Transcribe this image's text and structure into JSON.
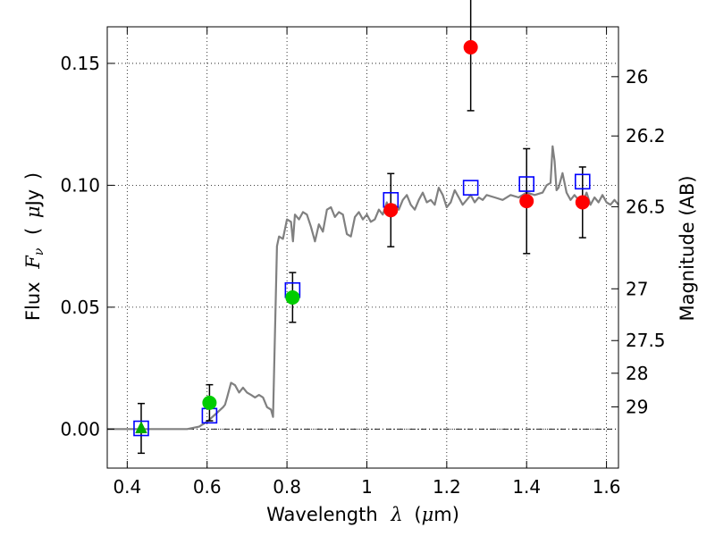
{
  "chart_data": {
    "type": "scatter",
    "xlabel": {
      "prefix": "Wavelength",
      "symbol": "λ",
      "unit_open": "(",
      "unit_mu": "μ",
      "unit_rest": "m)"
    },
    "ylabel": {
      "prefix": "Flux",
      "symbol": "F",
      "subscript": "ν",
      "unit_open": "(",
      "unit_mu": "μ",
      "unit_rest": "Jy",
      "unit_close": ")"
    },
    "y2label": "Magnitude (AB)",
    "xlim": [
      0.35,
      1.63
    ],
    "ylim": [
      -0.016,
      0.165
    ],
    "grid": true,
    "xticks": [
      {
        "v": 0.4,
        "label": "0.4"
      },
      {
        "v": 0.6,
        "label": "0.6"
      },
      {
        "v": 0.8,
        "label": "0.8"
      },
      {
        "v": 1.0,
        "label": "1"
      },
      {
        "v": 1.2,
        "label": "1.2"
      },
      {
        "v": 1.4,
        "label": "1.4"
      },
      {
        "v": 1.6,
        "label": "1.6"
      }
    ],
    "yticks": [
      {
        "v": 0.0,
        "label": "0.00"
      },
      {
        "v": 0.05,
        "label": "0.05"
      },
      {
        "v": 0.1,
        "label": "0.10"
      },
      {
        "v": 0.15,
        "label": "0.15"
      }
    ],
    "y2ticks": [
      {
        "mag": 26,
        "label": "26"
      },
      {
        "mag": 26.2,
        "label": "26.2"
      },
      {
        "mag": 26.5,
        "label": "26.5"
      },
      {
        "mag": 27,
        "label": "27"
      },
      {
        "mag": 27.5,
        "label": "27.5"
      },
      {
        "mag": 28,
        "label": "28"
      },
      {
        "mag": 29,
        "label": "29"
      }
    ],
    "template_spectrum": {
      "color": "#808080",
      "x": [
        0.35,
        0.55,
        0.58,
        0.6,
        0.62,
        0.64,
        0.645,
        0.65,
        0.66,
        0.67,
        0.68,
        0.69,
        0.7,
        0.71,
        0.72,
        0.73,
        0.74,
        0.75,
        0.76,
        0.765,
        0.77,
        0.775,
        0.78,
        0.79,
        0.8,
        0.81,
        0.815,
        0.82,
        0.83,
        0.84,
        0.85,
        0.86,
        0.87,
        0.88,
        0.89,
        0.9,
        0.91,
        0.92,
        0.93,
        0.94,
        0.95,
        0.96,
        0.97,
        0.98,
        0.99,
        1.0,
        1.01,
        1.02,
        1.03,
        1.04,
        1.05,
        1.06,
        1.07,
        1.08,
        1.09,
        1.1,
        1.11,
        1.12,
        1.13,
        1.14,
        1.15,
        1.16,
        1.17,
        1.18,
        1.19,
        1.2,
        1.21,
        1.22,
        1.23,
        1.24,
        1.25,
        1.26,
        1.27,
        1.28,
        1.29,
        1.3,
        1.32,
        1.34,
        1.36,
        1.38,
        1.4,
        1.42,
        1.44,
        1.45,
        1.46,
        1.465,
        1.47,
        1.475,
        1.48,
        1.49,
        1.5,
        1.51,
        1.52,
        1.53,
        1.54,
        1.55,
        1.56,
        1.57,
        1.58,
        1.59,
        1.6,
        1.61,
        1.62,
        1.63
      ],
      "y": [
        0.0,
        0.0,
        0.001,
        0.003,
        0.006,
        0.009,
        0.01,
        0.013,
        0.019,
        0.018,
        0.015,
        0.017,
        0.015,
        0.014,
        0.013,
        0.014,
        0.013,
        0.009,
        0.008,
        0.005,
        0.04,
        0.075,
        0.079,
        0.078,
        0.086,
        0.085,
        0.077,
        0.088,
        0.086,
        0.089,
        0.088,
        0.083,
        0.077,
        0.084,
        0.081,
        0.09,
        0.091,
        0.087,
        0.089,
        0.088,
        0.08,
        0.079,
        0.087,
        0.089,
        0.086,
        0.088,
        0.085,
        0.086,
        0.09,
        0.088,
        0.093,
        0.087,
        0.092,
        0.09,
        0.094,
        0.096,
        0.092,
        0.09,
        0.094,
        0.097,
        0.093,
        0.094,
        0.092,
        0.099,
        0.096,
        0.091,
        0.093,
        0.098,
        0.095,
        0.092,
        0.094,
        0.096,
        0.093,
        0.095,
        0.094,
        0.096,
        0.095,
        0.094,
        0.096,
        0.095,
        0.097,
        0.096,
        0.097,
        0.1,
        0.101,
        0.116,
        0.11,
        0.098,
        0.099,
        0.105,
        0.097,
        0.094,
        0.096,
        0.094,
        0.093,
        0.097,
        0.092,
        0.095,
        0.093,
        0.096,
        0.093,
        0.092,
        0.094,
        0.092
      ]
    },
    "model_photometry": {
      "marker": "open-square",
      "color": "#0000ff",
      "x": [
        0.435,
        0.606,
        0.814,
        1.06,
        1.26,
        1.4,
        1.54
      ],
      "y": [
        0.0003,
        0.0055,
        0.057,
        0.094,
        0.099,
        0.1005,
        0.1015
      ]
    },
    "observed_photometry": [
      {
        "x": 0.435,
        "y": 0.0003,
        "err": 0.0102,
        "marker": "triangle",
        "color": "#00aa00"
      },
      {
        "x": 0.606,
        "y": 0.0108,
        "err": 0.0074,
        "marker": "circle",
        "color": "#00cc00"
      },
      {
        "x": 0.814,
        "y": 0.054,
        "err": 0.0102,
        "marker": "circle",
        "color": "#00cc00"
      },
      {
        "x": 1.06,
        "y": 0.0898,
        "err": 0.015,
        "marker": "circle",
        "color": "#ff0000"
      },
      {
        "x": 1.26,
        "y": 0.1566,
        "err": 0.026,
        "marker": "circle",
        "color": "#ff0000"
      },
      {
        "x": 1.4,
        "y": 0.0935,
        "err": 0.0215,
        "marker": "circle",
        "color": "#ff0000"
      },
      {
        "x": 1.54,
        "y": 0.093,
        "err": 0.0145,
        "marker": "circle",
        "color": "#ff0000"
      }
    ],
    "zero_line": {
      "y": 0.0,
      "style": "dash-dot",
      "color": "#000000"
    }
  }
}
